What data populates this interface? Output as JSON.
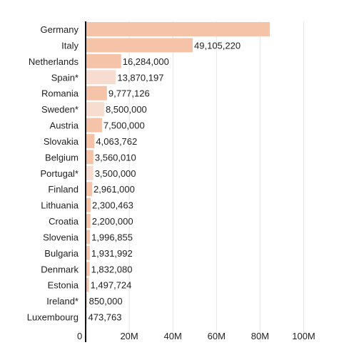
{
  "chart_data": {
    "type": "bar",
    "orientation": "horizontal",
    "title": "",
    "xlabel": "",
    "ylabel": "",
    "xlim": [
      0,
      100000000
    ],
    "x_ticks": [
      {
        "value": 0,
        "label": "0"
      },
      {
        "value": 20000000,
        "label": "20M"
      },
      {
        "value": 40000000,
        "label": "40M"
      },
      {
        "value": 60000000,
        "label": "60M"
      },
      {
        "value": 80000000,
        "label": "80M"
      },
      {
        "value": 100000000,
        "label": "100M"
      }
    ],
    "grid": true,
    "bars": [
      {
        "category": "Germany",
        "value": 84500000,
        "label": "",
        "estimated": false
      },
      {
        "category": "Italy",
        "value": 49105220,
        "label": "49,105,220",
        "estimated": false
      },
      {
        "category": "Netherlands",
        "value": 16284000,
        "label": "16,284,000",
        "estimated": false
      },
      {
        "category": "Spain*",
        "value": 13870197,
        "label": "13,870,197",
        "estimated": true
      },
      {
        "category": "Romania",
        "value": 9777126,
        "label": "9,777,126",
        "estimated": false
      },
      {
        "category": "Sweden*",
        "value": 8500000,
        "label": "8,500,000",
        "estimated": true
      },
      {
        "category": "Austria",
        "value": 7500000,
        "label": "7,500,000",
        "estimated": false
      },
      {
        "category": "Slovakia",
        "value": 4063762,
        "label": "4,063,762",
        "estimated": false
      },
      {
        "category": "Belgium",
        "value": 3560010,
        "label": "3,560,010",
        "estimated": false
      },
      {
        "category": "Portugal*",
        "value": 3500000,
        "label": "3,500,000",
        "estimated": true
      },
      {
        "category": "Finland",
        "value": 2961000,
        "label": "2,961,000",
        "estimated": false
      },
      {
        "category": "Lithuania",
        "value": 2300463,
        "label": "2,300,463",
        "estimated": false
      },
      {
        "category": "Croatia",
        "value": 2200000,
        "label": "2,200,000",
        "estimated": false
      },
      {
        "category": "Slovenia",
        "value": 1996855,
        "label": "1,996,855",
        "estimated": false
      },
      {
        "category": "Bulgaria",
        "value": 1931992,
        "label": "1,931,992",
        "estimated": false
      },
      {
        "category": "Denmark",
        "value": 1832080,
        "label": "1,832,080",
        "estimated": false
      },
      {
        "category": "Estonia",
        "value": 1497724,
        "label": "1,497,724",
        "estimated": false
      },
      {
        "category": "Ireland*",
        "value": 850000,
        "label": "850,000",
        "estimated": true
      },
      {
        "category": "Luxembourg",
        "value": 473763,
        "label": "473,763",
        "estimated": false
      }
    ],
    "colors": {
      "bar": "#f5c4a8",
      "bar_estimated": "#f7ddd0",
      "axis": "#111111",
      "grid": "#e6e6e6"
    }
  }
}
